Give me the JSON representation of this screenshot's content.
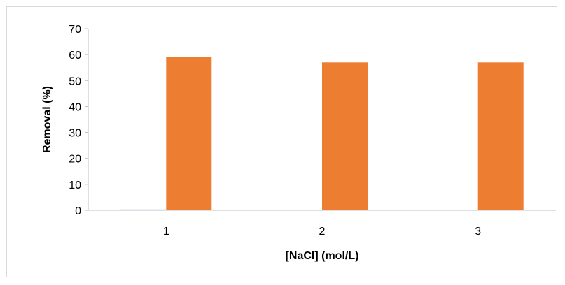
{
  "chart_data": {
    "type": "bar",
    "categories": [
      "1",
      "2",
      "3"
    ],
    "series": [
      {
        "values": [
          0.3,
          0,
          0
        ],
        "color": "#4472C4"
      },
      {
        "values": [
          59,
          57,
          57
        ],
        "color": "#ED7D31"
      }
    ],
    "xlabel": "[NaCl] (mol/L)",
    "ylabel": "Removal (%)",
    "ylim": [
      0,
      70
    ],
    "yticks": [
      0,
      10,
      20,
      30,
      40,
      50,
      60,
      70
    ],
    "grid": false,
    "legend": "none"
  }
}
